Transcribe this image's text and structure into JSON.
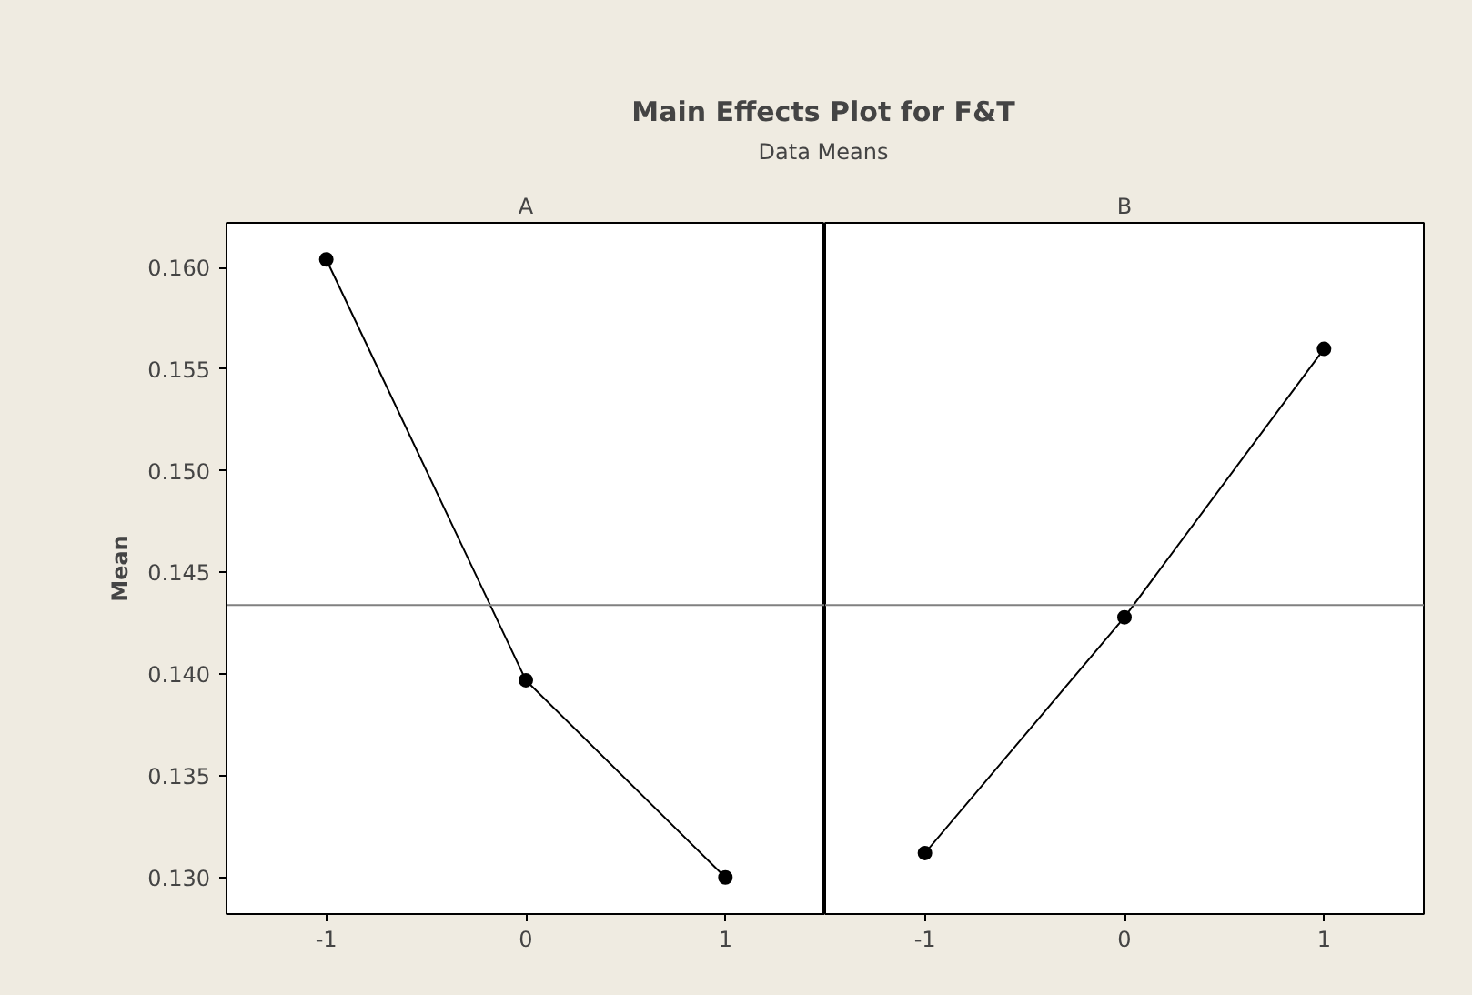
{
  "chart_data": [
    {
      "type": "line",
      "title": "Main Effects Plot for F&T",
      "subtitle": "Data Means",
      "annotations": [
        "A"
      ],
      "ylabel": "Mean",
      "x": [
        -1,
        0,
        1
      ],
      "series": [
        {
          "color": "#000000",
          "values": [
            0.1604,
            0.1397,
            0.13
          ]
        }
      ],
      "xlim": [
        -1.5,
        1.5
      ],
      "xticks": [
        -1,
        0,
        1
      ],
      "ylim": [
        0.1282,
        0.1622
      ],
      "yticks": [
        {
          "value": 0.13,
          "label": "0.130"
        },
        {
          "value": 0.135,
          "label": "0.135"
        },
        {
          "value": 0.14,
          "label": "0.140"
        },
        {
          "value": 0.145,
          "label": "0.145"
        },
        {
          "value": 0.15,
          "label": "0.150"
        },
        {
          "value": 0.155,
          "label": "0.155"
        },
        {
          "value": 0.16,
          "label": "0.160"
        }
      ],
      "ref_lines": [
        {
          "axis": "y",
          "value": 0.1434,
          "color": "#808080"
        }
      ],
      "marker": "circle",
      "grid": false
    },
    {
      "type": "line",
      "annotations": [
        "B"
      ],
      "x": [
        -1,
        0,
        1
      ],
      "series": [
        {
          "color": "#000000",
          "values": [
            0.1312,
            0.1428,
            0.156
          ]
        }
      ],
      "xlim": [
        -1.5,
        1.5
      ],
      "xticks": [
        -1,
        0,
        1
      ],
      "ylim": [
        0.1282,
        0.1622
      ],
      "ref_lines": [
        {
          "axis": "y",
          "value": 0.1434,
          "color": "#808080"
        }
      ],
      "marker": "circle",
      "grid": false,
      "tick_labels": "x"
    }
  ]
}
